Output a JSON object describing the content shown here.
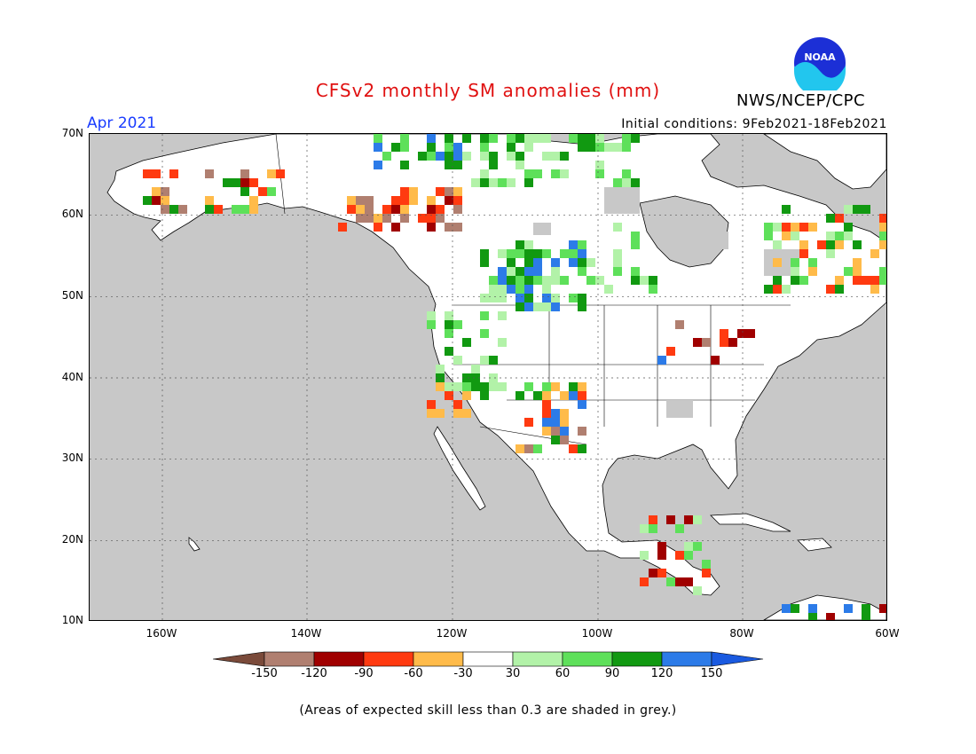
{
  "header": {
    "title": "CFSv2 monthly SM anomalies (mm)",
    "agency": "NWS/NCEP/CPC",
    "logo_text": "NOAA",
    "valid_month": "Apr 2021",
    "initial_conditions": "Initial conditions: 9Feb2021-18Feb2021"
  },
  "map": {
    "region": "North America",
    "lat_labels": [
      "70N",
      "60N",
      "50N",
      "40N",
      "30N",
      "20N",
      "10N"
    ],
    "lon_labels": [
      "160W",
      "140W",
      "120W",
      "100W",
      "80W",
      "60W"
    ],
    "colors": {
      "ocean": "#c8c8c8",
      "land": "#ffffff",
      "low_skill": "#c8c8c8"
    }
  },
  "legend": {
    "colors": [
      "#7a4a3a",
      "#b07f70",
      "#a00000",
      "#ff3a10",
      "#ffbb4a",
      "#ffffff",
      "#b2f2a8",
      "#5ee05a",
      "#119911",
      "#2c7be8",
      "#1a5ae0"
    ],
    "labels": [
      "-150",
      "-120",
      "-90",
      "-60",
      "-30",
      "30",
      "60",
      "90",
      "120",
      "150"
    ],
    "note": "(Areas of expected skill less than 0.3 are shaded in grey.)"
  }
}
